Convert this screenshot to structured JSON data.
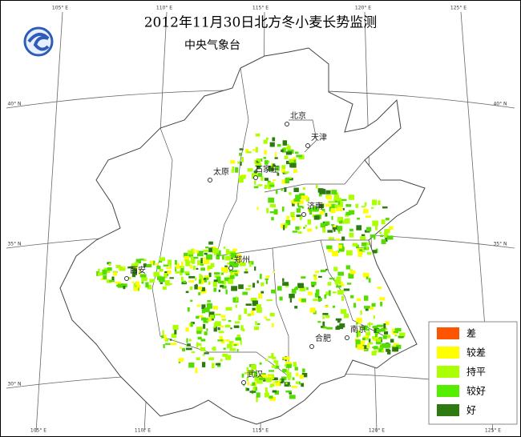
{
  "header": {
    "title": "2012年11月30日北方冬小麦长势监测",
    "subtitle": "中央气象台"
  },
  "graticule": {
    "top": [
      "105° E",
      "110° E",
      "115° E",
      "120° E",
      "125° E"
    ],
    "bottom": [
      "105° E",
      "110° E",
      "115° E",
      "120° E",
      "125° E"
    ],
    "left": [
      "40° N",
      "35° N",
      "30° N"
    ],
    "right": [
      "40° N",
      "35° N",
      "30° N"
    ]
  },
  "cities": [
    "北京",
    "天津",
    "太原",
    "石家庄",
    "济南",
    "西安",
    "郑州",
    "合肥",
    "南京",
    "武汉"
  ],
  "legend": [
    "差",
    "较差",
    "持平",
    "较好",
    "好"
  ]
}
